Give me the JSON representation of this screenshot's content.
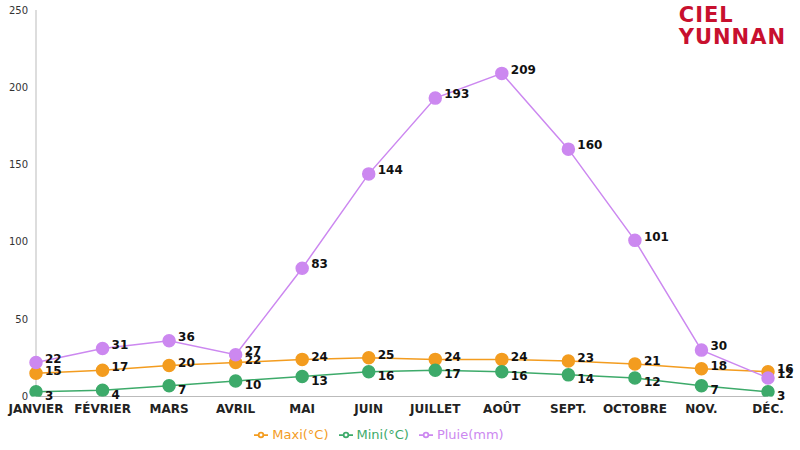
{
  "chart_data": {
    "type": "line",
    "logo": [
      "CIEL",
      "YUNNAN"
    ],
    "categories": [
      "JANVIER",
      "FÉVRIER",
      "MARS",
      "AVRIL",
      "MAI",
      "JUIN",
      "JUILLET",
      "AOÛT",
      "SEPT.",
      "OCTOBRE",
      "NOV.",
      "DÉC."
    ],
    "series": [
      {
        "name": "Maxi(°C)",
        "color": "#f39c1f",
        "values": [
          15,
          17,
          20,
          22,
          24,
          25,
          24,
          24,
          23,
          21,
          18,
          16
        ]
      },
      {
        "name": "Mini(°C)",
        "color": "#3daa6a",
        "values": [
          3,
          4,
          7,
          10,
          13,
          16,
          17,
          16,
          14,
          12,
          7,
          3
        ]
      },
      {
        "name": "Pluie(mm)",
        "color": "#cc88f0",
        "values": [
          22,
          31,
          36,
          27,
          83,
          144,
          193,
          209,
          160,
          101,
          30,
          12
        ]
      }
    ],
    "ylim": [
      0,
      250
    ],
    "yticks": [
      0,
      50,
      100,
      150,
      200,
      250
    ],
    "grid": false,
    "legend": "bottom",
    "data_labels": true,
    "marker": "circle"
  }
}
